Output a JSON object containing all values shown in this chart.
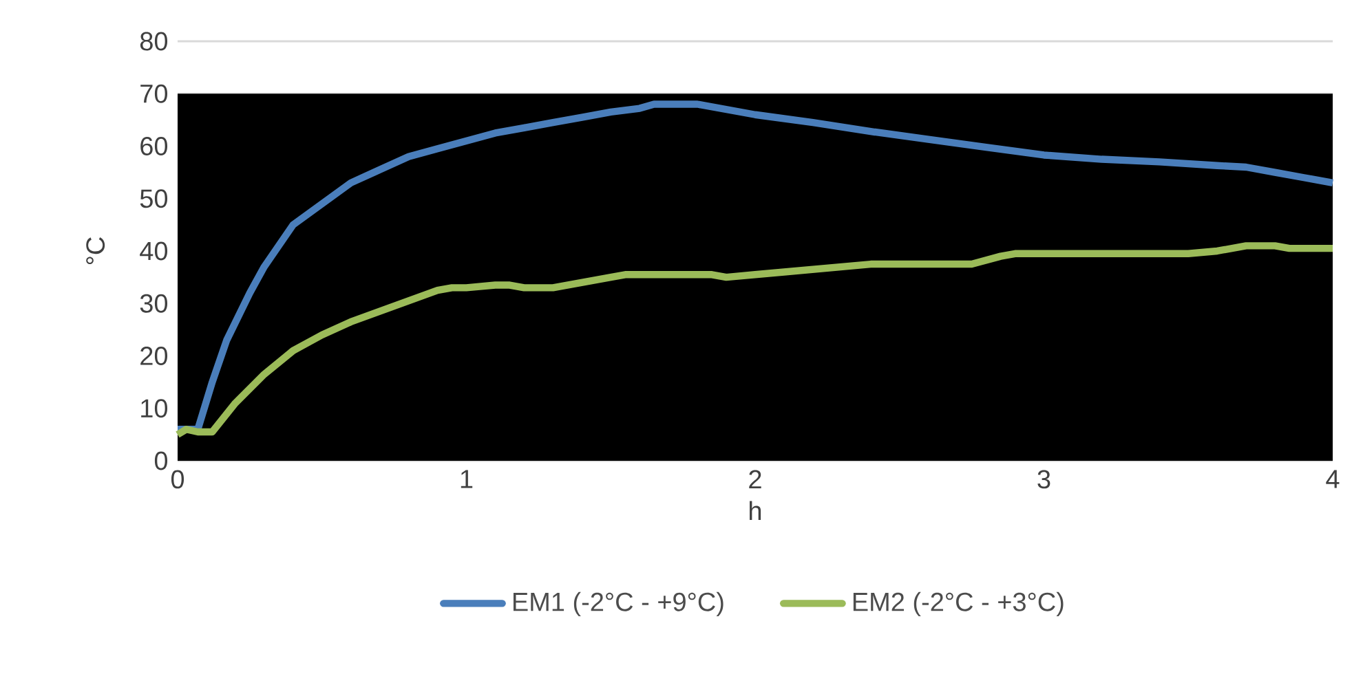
{
  "chart_data": {
    "type": "line",
    "xlabel": "h",
    "ylabel": "°C",
    "xlim": [
      0,
      4
    ],
    "xticks": [
      0,
      1,
      2,
      3,
      4
    ],
    "ylim": [
      0,
      80
    ],
    "yticks": [
      0,
      10,
      20,
      30,
      40,
      50,
      60,
      70,
      80
    ],
    "grid": "y",
    "legend": "bottom",
    "line_style": "solid",
    "marker": "none",
    "bands": [
      {
        "axis": "y",
        "from": 0,
        "to": 70,
        "color": "#000000"
      }
    ],
    "series": [
      {
        "name": "EM1 (-2°C - +9°C)",
        "color": "#4a7ebb",
        "x": [
          0,
          0.07,
          0.12,
          0.17,
          0.25,
          0.3,
          0.35,
          0.4,
          0.5,
          0.6,
          0.7,
          0.8,
          0.9,
          1.0,
          1.1,
          1.2,
          1.3,
          1.4,
          1.5,
          1.6,
          1.65,
          1.8,
          1.9,
          2.0,
          2.2,
          2.4,
          2.6,
          2.8,
          3.0,
          3.2,
          3.4,
          3.6,
          3.7,
          3.8,
          3.9,
          4.0
        ],
        "values": [
          6,
          6,
          15,
          23,
          32,
          37,
          41,
          45,
          49,
          53,
          55.5,
          58,
          59.5,
          61,
          62.5,
          63.5,
          64.5,
          65.5,
          66.5,
          67.2,
          68,
          68,
          67,
          66,
          64.5,
          62.8,
          61.3,
          59.8,
          58.3,
          57.5,
          57,
          56.3,
          56,
          55,
          54,
          53
        ]
      },
      {
        "name": "EM2 (-2°C - +3°C)",
        "color": "#9bbb59",
        "x": [
          0,
          0.03,
          0.07,
          0.12,
          0.2,
          0.3,
          0.4,
          0.5,
          0.6,
          0.7,
          0.8,
          0.9,
          0.95,
          1.0,
          1.1,
          1.15,
          1.2,
          1.3,
          1.4,
          1.5,
          1.55,
          1.85,
          1.9,
          2.0,
          2.1,
          2.2,
          2.3,
          2.4,
          2.6,
          2.75,
          2.85,
          2.9,
          3.5,
          3.6,
          3.7,
          3.8,
          3.85,
          4.0
        ],
        "values": [
          5,
          6,
          5.5,
          5.5,
          11,
          16.5,
          21,
          24,
          26.5,
          28.5,
          30.5,
          32.5,
          33,
          33,
          33.5,
          33.5,
          33,
          33,
          34,
          35,
          35.5,
          35.5,
          35,
          35.5,
          36,
          36.5,
          37,
          37.5,
          37.5,
          37.5,
          39,
          39.5,
          39.5,
          40,
          41,
          41,
          40.5,
          40.5
        ]
      }
    ]
  }
}
